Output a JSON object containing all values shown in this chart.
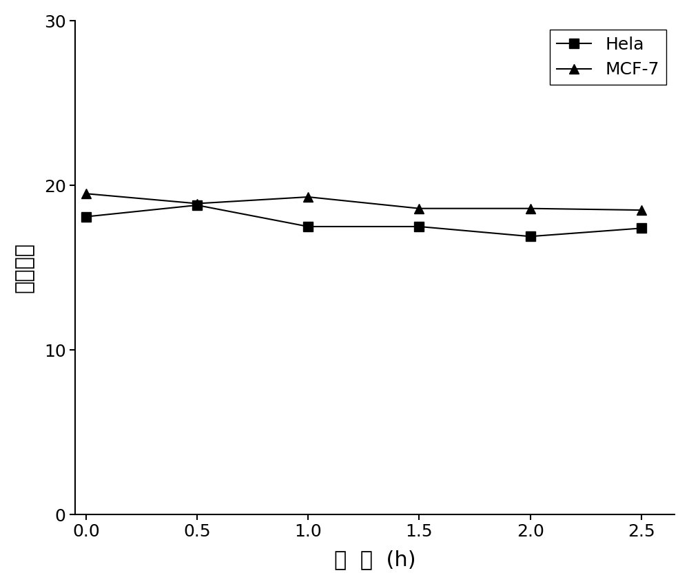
{
  "x": [
    0.0,
    0.5,
    1.0,
    1.5,
    2.0,
    2.5
  ],
  "hela_y": [
    18.1,
    18.8,
    17.5,
    17.5,
    16.9,
    17.4
  ],
  "mcf7_y": [
    19.5,
    18.9,
    19.3,
    18.6,
    18.6,
    18.5
  ],
  "hela_label": "Hela",
  "mcf7_label": "MCF-7",
  "xlabel": "时  间  (h)",
  "ylabel": "荺光强度",
  "xlim": [
    -0.05,
    2.65
  ],
  "ylim": [
    0,
    30
  ],
  "xticks": [
    0.0,
    0.5,
    1.0,
    1.5,
    2.0,
    2.5
  ],
  "yticks": [
    0,
    10,
    20,
    30
  ],
  "line_color": "#000000",
  "marker_color": "#000000",
  "background_color": "#ffffff",
  "legend_fontsize": 18,
  "axis_fontsize": 22,
  "tick_fontsize": 18,
  "line_width": 1.5,
  "marker_size": 10
}
